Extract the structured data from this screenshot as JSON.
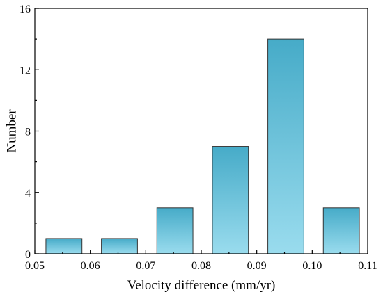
{
  "chart_data": {
    "type": "bar",
    "bars": [
      {
        "x0": 0.052,
        "x1": 0.0585,
        "value": 1
      },
      {
        "x0": 0.062,
        "x1": 0.0685,
        "value": 1
      },
      {
        "x0": 0.072,
        "x1": 0.0785,
        "value": 3
      },
      {
        "x0": 0.082,
        "x1": 0.0885,
        "value": 7
      },
      {
        "x0": 0.092,
        "x1": 0.0985,
        "value": 14
      },
      {
        "x0": 0.102,
        "x1": 0.1085,
        "value": 3
      }
    ],
    "xlabel": "Velocity difference (mm/yr)",
    "ylabel": "Number",
    "xlim": [
      0.05,
      0.11
    ],
    "ylim": [
      0,
      16
    ],
    "xticks": [
      0.05,
      0.06,
      0.07,
      0.08,
      0.09,
      0.1,
      0.11
    ],
    "xtick_labels": [
      "0.05",
      "0.06",
      "0.07",
      "0.08",
      "0.09",
      "0.10",
      "0.11"
    ],
    "yticks": [
      0,
      4,
      8,
      12,
      16
    ],
    "ytick_labels": [
      "0",
      "4",
      "8",
      "12",
      "16"
    ],
    "grid": false,
    "colors": {
      "bar_top": "#46abc8",
      "bar_bottom": "#9adcee",
      "bar_edge": "#333333"
    }
  }
}
